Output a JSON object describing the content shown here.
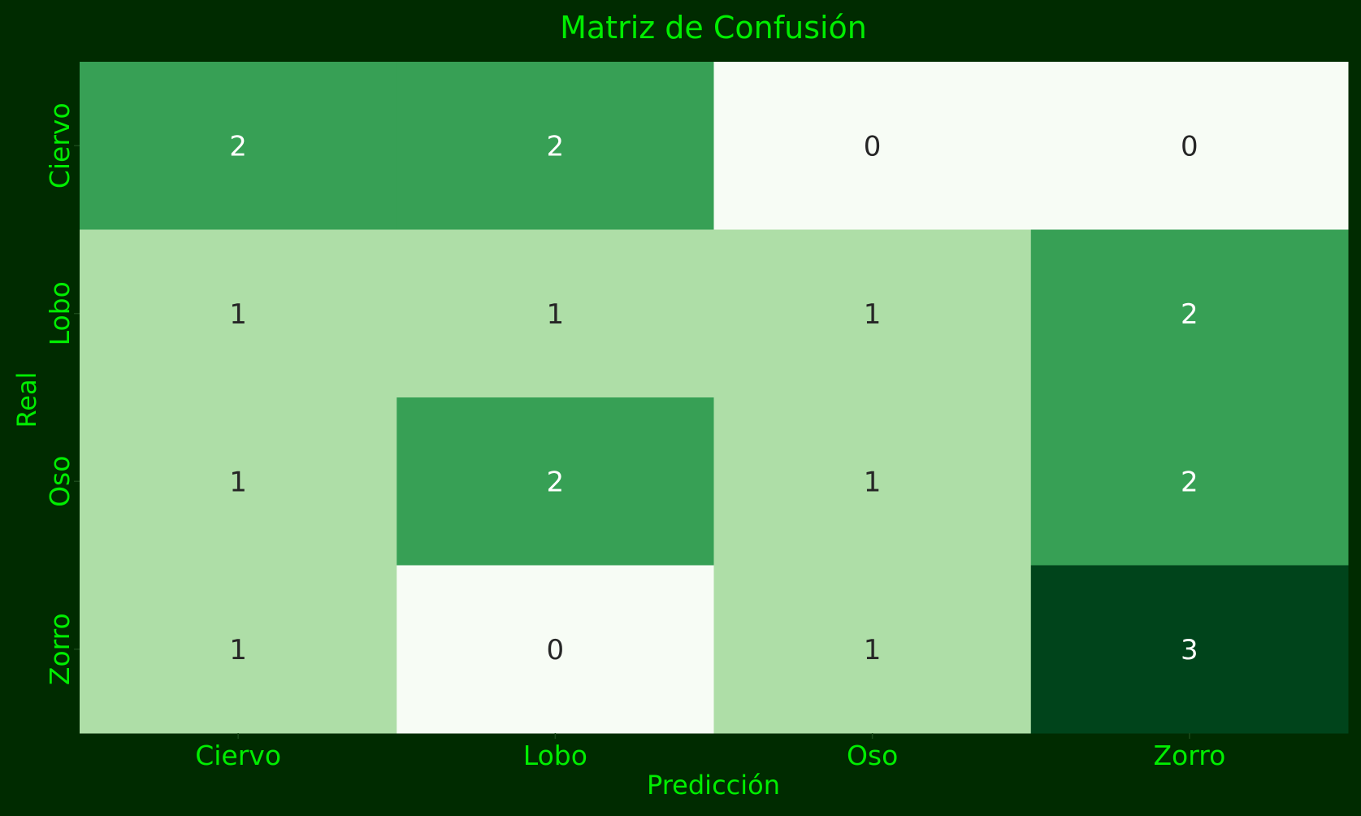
{
  "page": {
    "background": "#002b00"
  },
  "chart_data": {
    "type": "heatmap",
    "title": "Matriz de Confusión",
    "xlabel": "Predicción",
    "ylabel": "Real",
    "x_categories": [
      "Ciervo",
      "Lobo",
      "Oso",
      "Zorro"
    ],
    "y_categories": [
      "Ciervo",
      "Lobo",
      "Oso",
      "Zorro"
    ],
    "values": [
      [
        2,
        2,
        0,
        0
      ],
      [
        1,
        1,
        1,
        2
      ],
      [
        1,
        2,
        1,
        2
      ],
      [
        1,
        0,
        1,
        3
      ]
    ],
    "value_range": [
      0,
      3
    ],
    "colormap": "Greens",
    "grid": false,
    "colorbar": false,
    "colors": {
      "0": "#f7fcf5",
      "1": "#aedea7",
      "2": "#37a055",
      "3": "#00441b"
    },
    "label_color": "#00ee00",
    "annotation_dark_color": "#262626",
    "annotation_light_color": "#ffffff"
  }
}
